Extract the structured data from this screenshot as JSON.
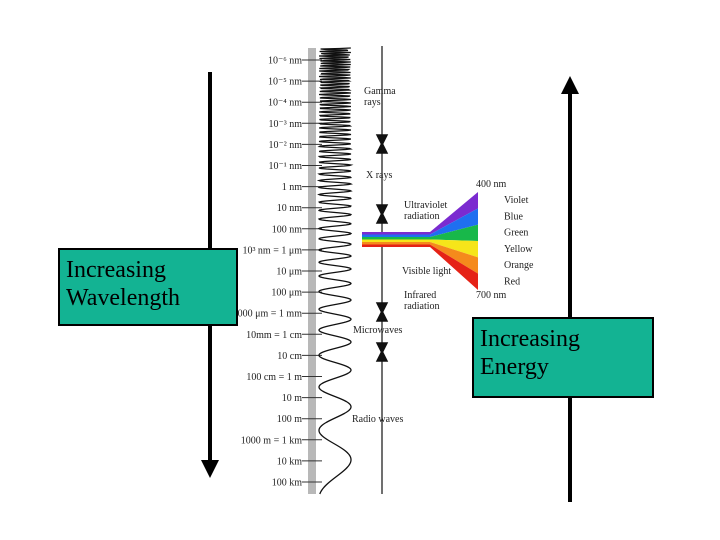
{
  "boxes": {
    "wavelength": "Increasing\nWavelength",
    "energy": "Increasing\nEnergy"
  },
  "scale": [
    {
      "label": "10⁻⁶ nm"
    },
    {
      "label": "10⁻⁵ nm"
    },
    {
      "label": "10⁻⁴ nm"
    },
    {
      "label": "10⁻³ nm"
    },
    {
      "label": "10⁻² nm"
    },
    {
      "label": "10⁻¹ nm"
    },
    {
      "label": "1 nm"
    },
    {
      "label": "10 nm"
    },
    {
      "label": "100 nm"
    },
    {
      "label": "10³ nm = 1 μm"
    },
    {
      "label": "10 μm"
    },
    {
      "label": "100 μm"
    },
    {
      "label": "1000 μm = 1 mm"
    },
    {
      "label": "10mm = 1 cm"
    },
    {
      "label": "10 cm"
    },
    {
      "label": "100 cm = 1 m"
    },
    {
      "label": "10 m"
    },
    {
      "label": "100 m"
    },
    {
      "label": "1000 m = 1 km"
    },
    {
      "label": "10 km"
    },
    {
      "label": "100 km"
    }
  ],
  "bands": {
    "gamma": "Gamma\nrays",
    "xray": "X rays",
    "uv": "Ultraviolet\nradiation",
    "visible": "Visible light",
    "ir": "Infrared\nradiation",
    "micro": "Microwaves",
    "radio": "Radio waves"
  },
  "visible_spectrum": {
    "top": "400 nm",
    "bottom": "700 nm",
    "colors": [
      {
        "name": "Violet",
        "color": "#7b2bd0"
      },
      {
        "name": "Blue",
        "color": "#1f6ff0"
      },
      {
        "name": "Green",
        "color": "#18b84a"
      },
      {
        "name": "Yellow",
        "color": "#f6e51a"
      },
      {
        "name": "Orange",
        "color": "#f58a1c"
      },
      {
        "name": "Red",
        "color": "#e52216"
      }
    ]
  },
  "colors": {
    "box_fill": "#13b393",
    "ruler": "#b8b8b8"
  }
}
